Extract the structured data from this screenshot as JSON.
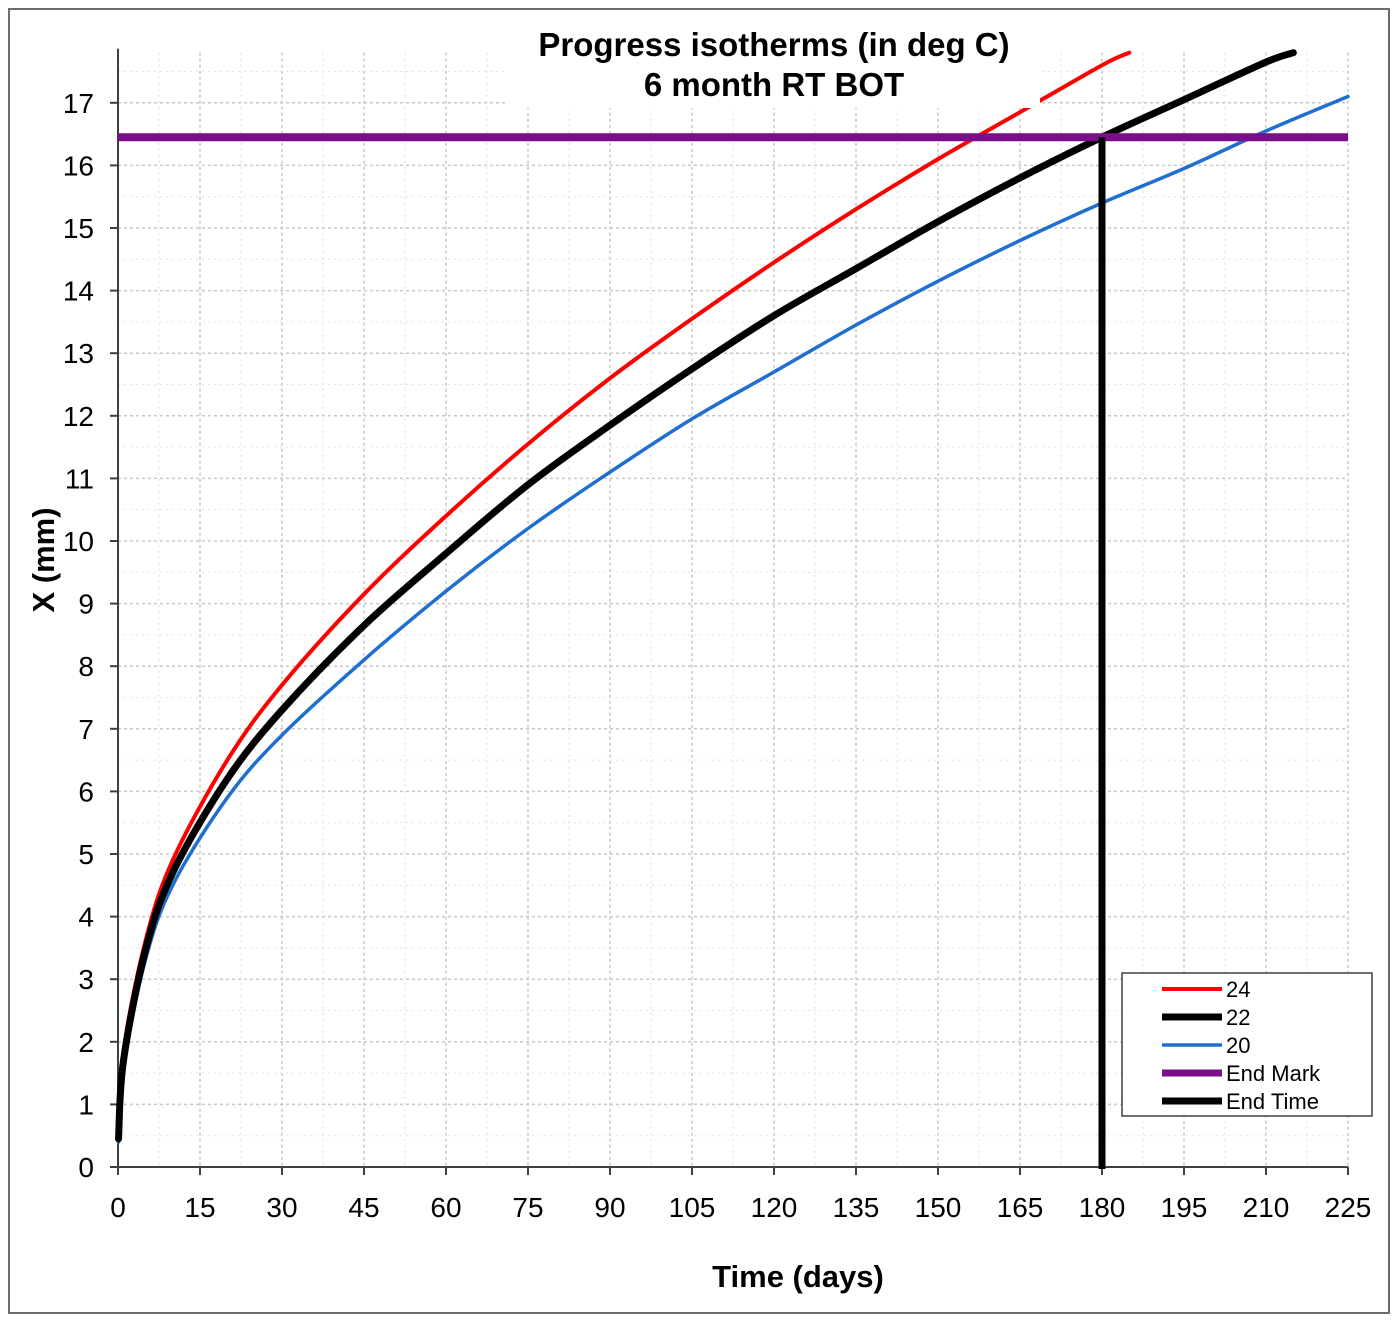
{
  "chart_data": {
    "type": "line",
    "title": [
      "Progress isotherms (in deg C)",
      "6 month RT BOT"
    ],
    "xlabel": "Time (days)",
    "ylabel": "X (mm)",
    "xlim": [
      0,
      225
    ],
    "ylim": [
      0,
      17.8
    ],
    "xticks": [
      0,
      15,
      30,
      45,
      60,
      75,
      90,
      105,
      120,
      135,
      150,
      165,
      180,
      195,
      210,
      225
    ],
    "yticks": [
      0,
      1,
      2,
      3,
      4,
      5,
      6,
      7,
      8,
      9,
      10,
      11,
      12,
      13,
      14,
      15,
      16,
      17
    ],
    "grid": true,
    "legend_position": "bottom-right",
    "series": [
      {
        "name": "24",
        "color": "#ff0000",
        "x": [
          0.1,
          1,
          5,
          10,
          20,
          30,
          45,
          60,
          75,
          90,
          105,
          120,
          135,
          150,
          165,
          180,
          185
        ],
        "y": [
          0.5,
          1.85,
          3.6,
          4.9,
          6.5,
          7.7,
          9.15,
          10.4,
          11.55,
          12.6,
          13.55,
          14.45,
          15.3,
          16.1,
          16.85,
          17.6,
          17.8
        ]
      },
      {
        "name": "22",
        "color": "#000000",
        "x": [
          0.1,
          1,
          5,
          10,
          20,
          30,
          45,
          60,
          75,
          90,
          105,
          120,
          135,
          150,
          165,
          180,
          195,
          210,
          215
        ],
        "y": [
          0.45,
          1.7,
          3.45,
          4.7,
          6.2,
          7.3,
          8.65,
          9.8,
          10.9,
          11.85,
          12.75,
          13.6,
          14.35,
          15.1,
          15.8,
          16.45,
          17.05,
          17.65,
          17.8
        ]
      },
      {
        "name": "20",
        "color": "#1f6fd1",
        "x": [
          0.1,
          1,
          5,
          10,
          20,
          30,
          45,
          60,
          75,
          90,
          105,
          120,
          135,
          150,
          165,
          180,
          195,
          210,
          225
        ],
        "y": [
          0.4,
          1.6,
          3.3,
          4.5,
          5.9,
          6.9,
          8.1,
          9.2,
          10.2,
          11.1,
          11.95,
          12.7,
          13.45,
          14.15,
          14.8,
          15.4,
          15.95,
          16.55,
          17.1
        ]
      }
    ],
    "end_mark": {
      "name": "End Mark",
      "color": "#7b0c8a",
      "y": 16.45
    },
    "end_time": {
      "name": "End Time",
      "color": "#000000",
      "x": 180,
      "y_top": 16.45
    }
  }
}
